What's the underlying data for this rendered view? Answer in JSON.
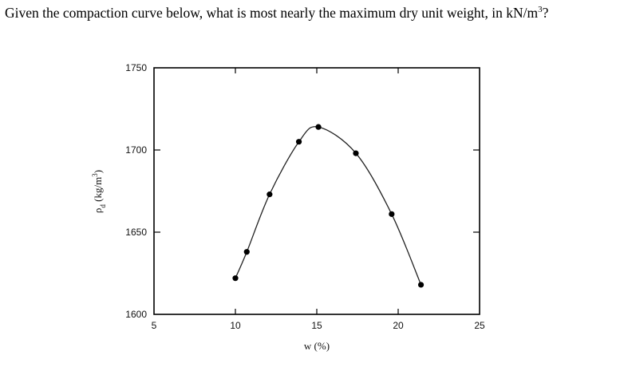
{
  "question": {
    "text": "Given the compaction curve below, what is most nearly the maximum dry unit weight, in kN/m",
    "superscript": "3",
    "suffix": "?"
  },
  "chart_data": {
    "type": "line",
    "title": "",
    "xlabel": "w (%)",
    "ylabel": "ρd (kg/m3)",
    "xlim": [
      5,
      25
    ],
    "ylim": [
      1600,
      1750
    ],
    "xticks": [
      "5",
      "10",
      "15",
      "20",
      "25"
    ],
    "yticks": [
      "1600",
      "1650",
      "1700",
      "1750"
    ],
    "grid": false,
    "series": [
      {
        "points": [
          {
            "x": 10.0,
            "y": 1622
          },
          {
            "x": 10.7,
            "y": 1638
          },
          {
            "x": 12.1,
            "y": 1673
          },
          {
            "x": 13.9,
            "y": 1705
          },
          {
            "x": 15.1,
            "y": 1714
          },
          {
            "x": 17.4,
            "y": 1698
          },
          {
            "x": 19.6,
            "y": 1661
          },
          {
            "x": 21.4,
            "y": 1618
          }
        ]
      }
    ],
    "colors": {
      "line": "#222222",
      "marker": "#000000",
      "frame": "#000000"
    }
  }
}
